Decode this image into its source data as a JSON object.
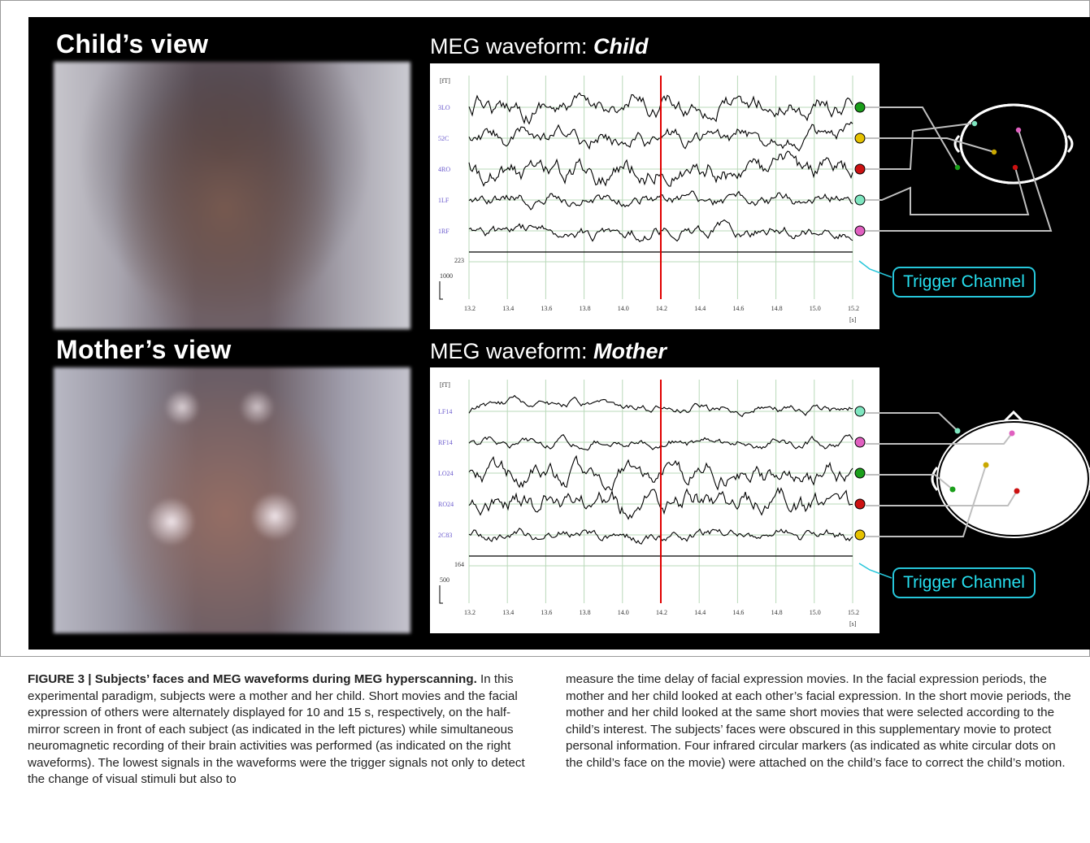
{
  "figure": {
    "child_view_title": "Child’s view",
    "mother_view_title": "Mother’s view",
    "meg_child_title_prefix": "MEG waveform: ",
    "meg_child_title_emph": "Child",
    "meg_mother_title_prefix": "MEG waveform: ",
    "meg_mother_title_emph": "Mother",
    "trigger_label": "Trigger Channel",
    "unit_ft": "[fT]",
    "unit_s": "[s]",
    "x_ticks": [
      "13.2",
      "13.4",
      "13.6",
      "13.8",
      "14.0",
      "14.2",
      "14.4",
      "14.6",
      "14.8",
      "15.0",
      "15.2"
    ],
    "child": {
      "channels": [
        "3LO",
        "52C",
        "4RO",
        "1LF",
        "1RF"
      ],
      "marker_colors": [
        "#1a9e1a",
        "#e6c200",
        "#cc1111",
        "#7fe6c0",
        "#e060c0"
      ],
      "trigger_value": "223",
      "scale_value": "1000",
      "head_dots": [
        "#7fe6c0",
        "#e060c0",
        "#c9a800",
        "#1a9e1a",
        "#cc1111"
      ]
    },
    "mother": {
      "channels": [
        "LF14",
        "RF14",
        "LO24",
        "RO24",
        "2C83"
      ],
      "marker_colors": [
        "#7fe6c0",
        "#e060c0",
        "#1a9e1a",
        "#cc1111",
        "#e6c200"
      ],
      "trigger_value": "164",
      "scale_value": "500",
      "head_dots": [
        "#7fe6c0",
        "#e060c0",
        "#c9a800",
        "#1a9e1a",
        "#cc1111"
      ]
    },
    "cursor_time": 14.2,
    "colors": {
      "cursor": "#e00000",
      "trigger": "#26c6da",
      "grid": "#b9d9b9"
    }
  },
  "caption": {
    "title": "FIGURE 3 | Subjects’ faces and MEG waveforms during MEG hyperscanning.",
    "left_text": " In this experimental paradigm, subjects were a mother and her child. Short movies and the facial expression of others were alternately displayed for 10 and 15 s, respectively, on the half-mirror screen in front of each subject (as indicated in the left pictures) while simultaneous neuromagnetic recording of their brain activities was performed (as indicated on the right waveforms). The lowest signals in the waveforms were the trigger signals not only to detect the change of visual stimuli but also to",
    "right_text": "measure the time delay of facial expression movies. In the facial expression periods, the mother and her child looked at each other’s facial expression. In the short movie periods, the mother and her child looked at the same short movies that were selected according to the child’s interest. The subjects’ faces were obscured in this supplementary movie to protect personal information. Four infrared circular markers (as indicated as white circular dots on the child’s face on the movie) were attached on the child’s face to correct the child’s motion."
  }
}
